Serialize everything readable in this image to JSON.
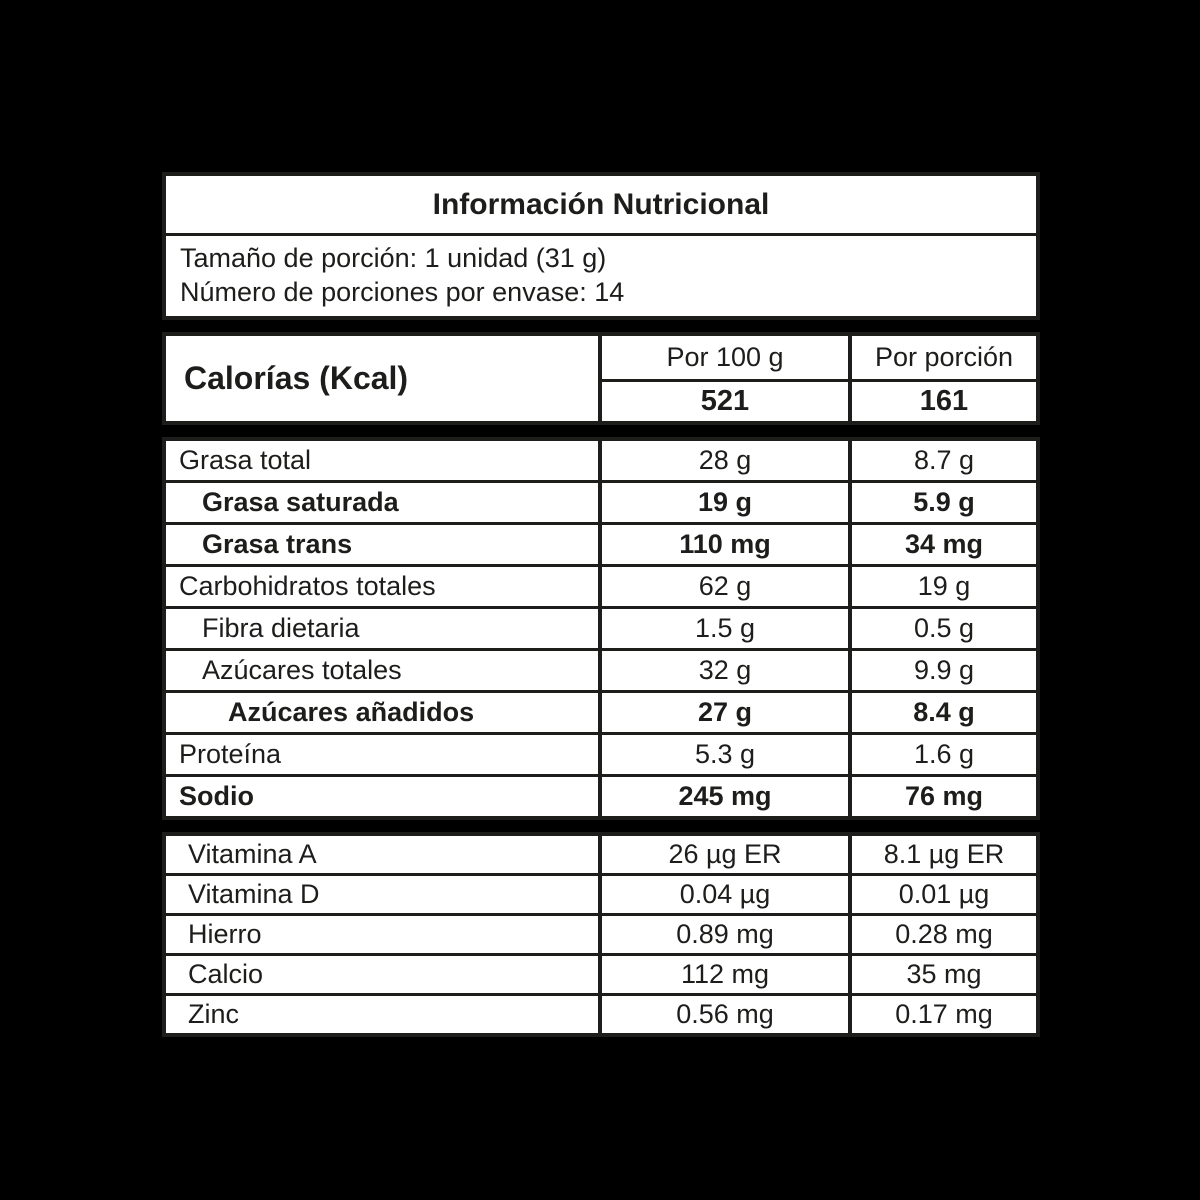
{
  "label": {
    "title": "Información Nutricional",
    "serving_size": "Tamaño de porción: 1 unidad (31 g)",
    "servings_per_container": "Número de porciones por envase: 14",
    "colors": {
      "text": "#1d1d1b",
      "label_background": "#ffffff",
      "page_background": "#000000"
    },
    "calories": {
      "label": "Calorías (Kcal)",
      "col_per100": "Por 100 g",
      "col_portion": "Por porción",
      "per100": "521",
      "portion": "161"
    },
    "nutrients": [
      {
        "name": "Grasa total",
        "per100": "28 g",
        "portion": "8.7 g",
        "bold": false,
        "indent": 0
      },
      {
        "name": "Grasa saturada",
        "per100": "19 g",
        "portion": "5.9 g",
        "bold": true,
        "indent": 1
      },
      {
        "name": "Grasa trans",
        "per100": "110 mg",
        "portion": "34 mg",
        "bold": true,
        "indent": 1
      },
      {
        "name": "Carbohidratos totales",
        "per100": "62 g",
        "portion": "19 g",
        "bold": false,
        "indent": 0
      },
      {
        "name": "Fibra dietaria",
        "per100": "1.5 g",
        "portion": "0.5 g",
        "bold": false,
        "indent": 1
      },
      {
        "name": "Azúcares totales",
        "per100": "32 g",
        "portion": "9.9 g",
        "bold": false,
        "indent": 1
      },
      {
        "name": "Azúcares añadidos",
        "per100": "27 g",
        "portion": "8.4 g",
        "bold": true,
        "indent": 2
      },
      {
        "name": "Proteína",
        "per100": "5.3 g",
        "portion": "1.6 g",
        "bold": false,
        "indent": 0
      },
      {
        "name": "Sodio",
        "per100": "245 mg",
        "portion": "76 mg",
        "bold": true,
        "indent": 0
      }
    ],
    "micronutrients": [
      {
        "name": "Vitamina A",
        "per100": "26 µg ER",
        "portion": "8.1 µg ER"
      },
      {
        "name": "Vitamina D",
        "per100": "0.04 µg",
        "portion": "0.01 µg"
      },
      {
        "name": "Hierro",
        "per100": "0.89 mg",
        "portion": "0.28 mg"
      },
      {
        "name": "Calcio",
        "per100": "112 mg",
        "portion": "35 mg"
      },
      {
        "name": "Zinc",
        "per100": "0.56 mg",
        "portion": "0.17 mg"
      }
    ]
  }
}
